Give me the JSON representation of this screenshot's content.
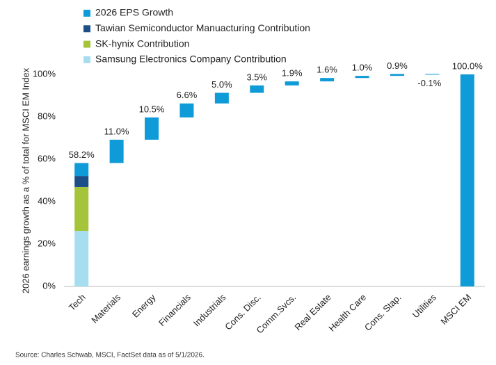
{
  "chart_data": {
    "type": "waterfall",
    "y_label": "2026 earnings growth as a % of total for MSCI EM Index",
    "source": "Source: Charles Schwab, MSCI, FactSet data as of 5/1/2026.",
    "categories": [
      "Tech",
      "Materials",
      "Energy",
      "Financials",
      "Industrials",
      "Cons. Disc.",
      "Comm.Svcs.",
      "Real Estate",
      "Health Care",
      "Cons. Stap.",
      "Utilities",
      "MSCI EM"
    ],
    "series": [
      {
        "name": "2026 EPS Growth",
        "color": "#0f9bd7",
        "values": [
          58.2,
          11.0,
          10.5,
          6.6,
          5.0,
          3.5,
          1.9,
          1.6,
          1.0,
          0.9,
          -0.1,
          100.0
        ],
        "value_labels": [
          "58.2%",
          "11.0%",
          "10.5%",
          "6.6%",
          "5.0%",
          "3.5%",
          "1.9%",
          "1.6%",
          "1.0%",
          "0.9%",
          "-0.1%",
          "100.0%"
        ]
      },
      {
        "name": "Tawian Semiconductor Manuacturing Contribution",
        "color": "#1c4f87",
        "values": [
          5.2,
          null,
          null,
          null,
          null,
          null,
          null,
          null,
          null,
          null,
          null,
          null
        ]
      },
      {
        "name": "SK-hynix Contribution",
        "color": "#a5c43a",
        "values": [
          20.7,
          null,
          null,
          null,
          null,
          null,
          null,
          null,
          null,
          null,
          null,
          null
        ]
      },
      {
        "name": "Samsung Electronics Company Contribution",
        "color": "#a6def0",
        "values": [
          26.2,
          null,
          null,
          null,
          null,
          null,
          null,
          null,
          null,
          null,
          null,
          null
        ]
      }
    ],
    "ylim": [
      0,
      100
    ],
    "yticks": [
      {
        "value": 0,
        "label": "0%"
      },
      {
        "value": 20,
        "label": "20%"
      },
      {
        "value": 40,
        "label": "40%"
      },
      {
        "value": 60,
        "label": "60%"
      },
      {
        "value": 80,
        "label": "80%"
      },
      {
        "value": 100,
        "label": "100%"
      }
    ]
  }
}
